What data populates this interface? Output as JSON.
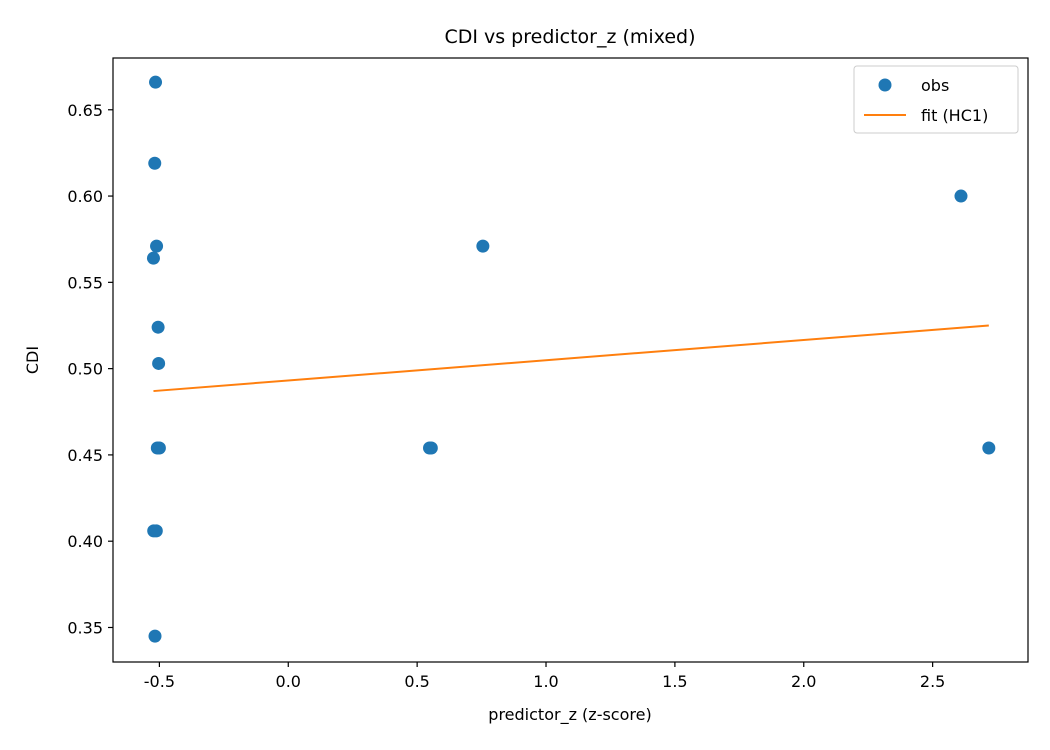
{
  "chart_data": {
    "type": "scatter",
    "title": "CDI vs predictor_z (mixed)",
    "xlabel": "predictor_z (z-score)",
    "ylabel": "CDI",
    "xlim": [
      -0.68,
      2.87
    ],
    "ylim": [
      0.33,
      0.68
    ],
    "xticks": [
      -0.5,
      0.0,
      0.5,
      1.0,
      1.5,
      2.0,
      2.5
    ],
    "xtick_labels": [
      "-0.5",
      "0.0",
      "0.5",
      "1.0",
      "1.5",
      "2.0",
      "2.5"
    ],
    "yticks": [
      0.35,
      0.4,
      0.45,
      0.5,
      0.55,
      0.6,
      0.65
    ],
    "ytick_labels": [
      "0.35",
      "0.40",
      "0.45",
      "0.50",
      "0.55",
      "0.60",
      "0.65"
    ],
    "grid": false,
    "legend_position": "top-right",
    "series": [
      {
        "name": "obs",
        "kind": "scatter",
        "color": "#1f77b4",
        "points": [
          {
            "x": -0.515,
            "y": 0.666
          },
          {
            "x": -0.518,
            "y": 0.619
          },
          {
            "x": -0.511,
            "y": 0.571
          },
          {
            "x": -0.523,
            "y": 0.564
          },
          {
            "x": -0.505,
            "y": 0.524
          },
          {
            "x": -0.503,
            "y": 0.503
          },
          {
            "x": -0.508,
            "y": 0.454
          },
          {
            "x": -0.5,
            "y": 0.454
          },
          {
            "x": -0.522,
            "y": 0.406
          },
          {
            "x": -0.512,
            "y": 0.406
          },
          {
            "x": -0.517,
            "y": 0.345
          },
          {
            "x": 0.548,
            "y": 0.454
          },
          {
            "x": 0.555,
            "y": 0.454
          },
          {
            "x": 0.755,
            "y": 0.571
          },
          {
            "x": 2.61,
            "y": 0.6
          },
          {
            "x": 2.718,
            "y": 0.454
          }
        ]
      },
      {
        "name": "fit (HC1)",
        "kind": "line",
        "color": "#ff7f0e",
        "points": [
          {
            "x": -0.523,
            "y": 0.487
          },
          {
            "x": 2.718,
            "y": 0.525
          }
        ]
      }
    ]
  }
}
